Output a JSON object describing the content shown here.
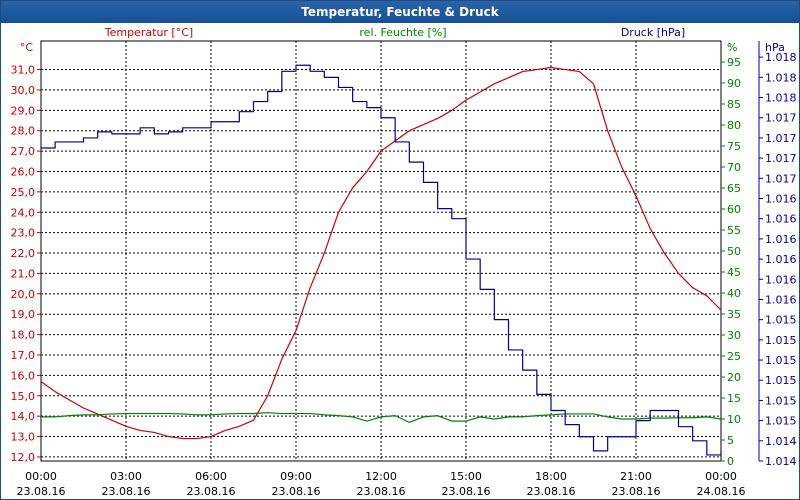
{
  "window": {
    "title": "Temperatur, Feuchte & Druck"
  },
  "colors": {
    "temp": "#cc0000",
    "hum": "#008000",
    "press": "#000099",
    "title_bar": "#1e5a9c"
  },
  "chart_data": {
    "type": "line",
    "title": "Temperatur, Feuchte & Druck",
    "xlabel": "",
    "x_ticks": [
      {
        "hours": 0,
        "time": "00:00",
        "date": "23.08.16"
      },
      {
        "hours": 3,
        "time": "03:00",
        "date": "23.08.16"
      },
      {
        "hours": 6,
        "time": "06:00",
        "date": "23.08.16"
      },
      {
        "hours": 9,
        "time": "09:00",
        "date": "23.08.16"
      },
      {
        "hours": 12,
        "time": "12:00",
        "date": "23.08.16"
      },
      {
        "hours": 15,
        "time": "15:00",
        "date": "23.08.16"
      },
      {
        "hours": 18,
        "time": "18:00",
        "date": "23.08.16"
      },
      {
        "hours": 21,
        "time": "21:00",
        "date": "23.08.16"
      },
      {
        "hours": 24,
        "time": "00:00",
        "date": "24.08.16"
      }
    ],
    "xlim": [
      0,
      24
    ],
    "axes": {
      "temp": {
        "unit": "°C",
        "header": "Temperatur [°C]",
        "ylim": [
          11.8,
          32.4
        ],
        "ticks": [
          "12,0",
          "13,0",
          "14,0",
          "15,0",
          "16,0",
          "17,0",
          "18,0",
          "19,0",
          "20,0",
          "21,0",
          "22,0",
          "23,0",
          "24,0",
          "25,0",
          "26,0",
          "27,0",
          "28,0",
          "29,0",
          "30,0",
          "31,0"
        ],
        "tick_values": [
          12,
          13,
          14,
          15,
          16,
          17,
          18,
          19,
          20,
          21,
          22,
          23,
          24,
          25,
          26,
          27,
          28,
          29,
          30,
          31
        ]
      },
      "hum": {
        "unit": "%",
        "header": "rel. Feuchte [%]",
        "ylim": [
          0,
          100
        ],
        "ticks": [
          "0",
          "5",
          "10",
          "15",
          "20",
          "25",
          "30",
          "35",
          "40",
          "45",
          "50",
          "55",
          "60",
          "65",
          "70",
          "75",
          "80",
          "85",
          "90",
          "95"
        ],
        "tick_values": [
          0,
          5,
          10,
          15,
          20,
          25,
          30,
          35,
          40,
          45,
          50,
          55,
          60,
          65,
          70,
          75,
          80,
          85,
          90,
          95
        ]
      },
      "press": {
        "unit": "hPa",
        "header": "Druck [hPa]",
        "ylim": [
          0,
          20.8
        ],
        "ticks": [
          "1.014",
          "1.014",
          "1.015",
          "1.015",
          "1.015",
          "1.015",
          "1.015",
          "1.015",
          "1.016",
          "1.016",
          "1.016",
          "1.016",
          "1.016",
          "1.016",
          "1.017",
          "1.017",
          "1.017",
          "1.017",
          "1.018",
          "1.018",
          "1.018"
        ],
        "tick_values": [
          0,
          1,
          2,
          3,
          4,
          5,
          6,
          7,
          8,
          9,
          10,
          11,
          12,
          13,
          14,
          15,
          16,
          17,
          18,
          19,
          20
        ]
      }
    },
    "series": [
      {
        "name": "Temperatur",
        "axis": "temp",
        "x": [
          0,
          0.5,
          1,
          1.5,
          2,
          2.5,
          3,
          3.5,
          4,
          4.5,
          5,
          5.5,
          6,
          6.5,
          7,
          7.5,
          8,
          8.5,
          9,
          9.5,
          10,
          10.5,
          11,
          11.5,
          12,
          12.5,
          13,
          13.5,
          14,
          14.5,
          15,
          15.5,
          16,
          16.5,
          17,
          17.5,
          18,
          18.5,
          19,
          19.5,
          20,
          20.5,
          21,
          21.5,
          22,
          22.5,
          23,
          23.5,
          24
        ],
        "values": [
          15.7,
          15.2,
          14.8,
          14.4,
          14.1,
          13.8,
          13.5,
          13.3,
          13.2,
          13.0,
          12.9,
          12.9,
          13.0,
          13.3,
          13.5,
          13.8,
          15.0,
          16.8,
          18.2,
          20.3,
          22.0,
          24.0,
          25.2,
          26.0,
          27.0,
          27.5,
          28.0,
          28.3,
          28.6,
          29.0,
          29.5,
          29.9,
          30.3,
          30.6,
          30.9,
          31.0,
          31.1,
          31.0,
          30.9,
          30.3,
          28.0,
          26.2,
          24.8,
          23.2,
          22.0,
          21.0,
          20.3,
          19.9,
          19.2
        ]
      },
      {
        "name": "rel. Feuchte",
        "axis": "hum",
        "x": [
          0,
          0.5,
          1,
          1.5,
          2,
          2.5,
          3,
          3.5,
          4,
          4.5,
          5,
          5.5,
          6,
          6.5,
          7,
          7.5,
          8,
          8.5,
          9,
          9.5,
          10,
          10.5,
          11,
          11.5,
          12,
          12.5,
          13,
          13.5,
          14,
          14.5,
          15,
          15.5,
          16,
          16.5,
          17,
          17.5,
          18,
          18.5,
          19,
          19.5,
          20,
          20.5,
          21,
          21.5,
          22,
          22.5,
          23,
          23.5,
          24
        ],
        "values": [
          10.5,
          10.5,
          10.8,
          11.0,
          11.0,
          11.2,
          11.3,
          11.3,
          11.3,
          11.3,
          11.2,
          11.0,
          11.0,
          11.2,
          11.3,
          11.3,
          11.5,
          11.3,
          11.3,
          11.3,
          11.0,
          10.8,
          10.5,
          9.5,
          10.5,
          10.8,
          9.2,
          10.5,
          10.8,
          9.5,
          9.5,
          10.5,
          10.0,
          10.5,
          10.5,
          10.8,
          11.0,
          11.2,
          11.2,
          11.2,
          10.5,
          10.0,
          10.0,
          10.2,
          10.2,
          10.3,
          10.3,
          10.5,
          10.0
        ]
      },
      {
        "name": "Druck",
        "axis": "press",
        "x": [
          0,
          0.5,
          1,
          1.5,
          2,
          2.5,
          3,
          3.5,
          4,
          4.5,
          5,
          5.5,
          6,
          6.5,
          7,
          7.5,
          8,
          8.5,
          9,
          9.5,
          10,
          10.5,
          11,
          11.5,
          12,
          12.5,
          13,
          13.5,
          14,
          14.5,
          15,
          15.5,
          16,
          16.5,
          17,
          17.5,
          18,
          18.5,
          19,
          19.5,
          20,
          20.5,
          21,
          21.5,
          22,
          22.5,
          23,
          23.5,
          24
        ],
        "values": [
          15.5,
          15.8,
          15.8,
          16.0,
          16.3,
          16.2,
          16.2,
          16.5,
          16.2,
          16.3,
          16.5,
          16.5,
          16.8,
          16.8,
          17.3,
          17.8,
          18.3,
          19.3,
          19.6,
          19.3,
          19.0,
          18.5,
          17.8,
          17.5,
          17.0,
          15.8,
          14.8,
          13.8,
          12.5,
          12.0,
          10.0,
          8.5,
          7.0,
          5.5,
          4.5,
          3.3,
          2.5,
          1.8,
          1.2,
          0.5,
          1.2,
          1.2,
          2.0,
          2.5,
          2.5,
          1.7,
          1.0,
          0.3,
          0.5
        ]
      }
    ]
  }
}
